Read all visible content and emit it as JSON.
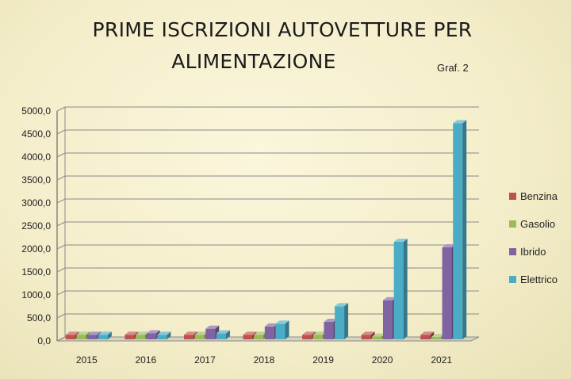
{
  "title_line1": "PRIME ISCRIZIONI AUTOVETTURE PER",
  "title_line2": "ALIMENTAZIONE",
  "graf_label": "Graf. 2",
  "chart_data": {
    "type": "bar",
    "title": "PRIME ISCRIZIONI AUTOVETTURE PER ALIMENTAZIONE",
    "xlabel": "",
    "ylabel": "",
    "categories": [
      "2015",
      "2016",
      "2017",
      "2018",
      "2019",
      "2020",
      "2021"
    ],
    "y_tick_labels": [
      "0,0",
      "500,0",
      "1000,0",
      "1500,0",
      "2000,0",
      "2500,0",
      "3000,0",
      "3500,0",
      "4000,0",
      "4500,0",
      "5000,0"
    ],
    "ylim": [
      0,
      5000
    ],
    "grid": true,
    "legend_position": "right",
    "series": [
      {
        "name": "Benzina",
        "color": "#c0504d",
        "values": [
          100,
          100,
          100,
          100,
          100,
          100,
          100
        ]
      },
      {
        "name": "Gasolio",
        "color": "#9bbb59",
        "values": [
          100,
          100,
          100,
          100,
          100,
          60,
          50
        ]
      },
      {
        "name": "Ibrido",
        "color": "#8064a2",
        "values": [
          100,
          130,
          230,
          280,
          380,
          850,
          2000
        ]
      },
      {
        "name": "Elettrico",
        "color": "#4bacc6",
        "values": [
          100,
          100,
          130,
          340,
          720,
          2120,
          4700
        ]
      }
    ]
  }
}
